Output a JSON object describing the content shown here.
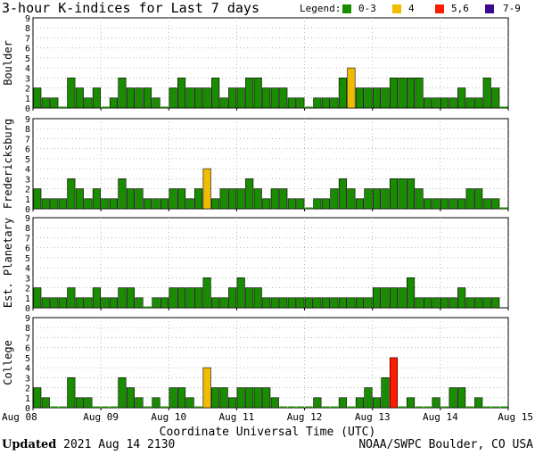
{
  "header": {
    "title": "3-hour K-indices for Last 7 days",
    "legend_label": "Legend:",
    "legend": [
      {
        "label": "0-3",
        "color": "#1a8c00"
      },
      {
        "label": "4",
        "color": "#f0bc00"
      },
      {
        "label": "5,6",
        "color": "#ff1a00"
      },
      {
        "label": "7-9",
        "color": "#3a0a8c"
      }
    ]
  },
  "footer": {
    "updated_label": "Updated",
    "updated_value": "2021 Aug 14 2130",
    "source": "NOAA/SWPC Boulder, CO USA"
  },
  "chart_data": {
    "type": "bar",
    "xlabel": "Coordinate Universal Time (UTC)",
    "x_ticks": [
      "Aug 08",
      "Aug 09",
      "Aug 10",
      "Aug 11",
      "Aug 12",
      "Aug 13",
      "Aug 14",
      "Aug 15"
    ],
    "ylim": [
      0,
      9
    ],
    "y_ticks": [
      "0",
      "1",
      "2",
      "3",
      "4",
      "5",
      "6",
      "7",
      "8",
      "9"
    ],
    "intervals_per_day": 8,
    "color_scale": [
      {
        "range": "0-3",
        "color": "#1a8c00"
      },
      {
        "range": "4",
        "color": "#f0bc00"
      },
      {
        "range": "5,6",
        "color": "#ff1a00"
      },
      {
        "range": "7-9",
        "color": "#3a0a8c"
      }
    ],
    "panels": [
      {
        "name": "Boulder",
        "values": [
          2,
          1,
          1,
          0,
          3,
          2,
          1,
          2,
          0,
          1,
          3,
          2,
          2,
          2,
          1,
          0,
          2,
          3,
          2,
          2,
          2,
          3,
          1,
          2,
          2,
          3,
          3,
          2,
          2,
          2,
          1,
          1,
          0,
          1,
          1,
          1,
          3,
          4,
          2,
          2,
          2,
          2,
          3,
          3,
          3,
          3,
          1,
          1,
          1,
          1,
          2,
          1,
          1,
          3,
          2,
          0
        ]
      },
      {
        "name": "Fredericksburg",
        "values": [
          2,
          1,
          1,
          1,
          3,
          2,
          1,
          2,
          1,
          1,
          3,
          2,
          2,
          1,
          1,
          1,
          2,
          2,
          1,
          2,
          4,
          1,
          2,
          2,
          2,
          3,
          2,
          1,
          2,
          2,
          1,
          1,
          0,
          1,
          1,
          2,
          3,
          2,
          1,
          2,
          2,
          2,
          3,
          3,
          3,
          2,
          1,
          1,
          1,
          1,
          1,
          2,
          2,
          1,
          1,
          0
        ]
      },
      {
        "name": "Est. Planetary",
        "values": [
          2,
          1,
          1,
          1,
          2,
          1,
          1,
          2,
          1,
          1,
          2,
          2,
          1,
          0,
          1,
          1,
          2,
          2,
          2,
          2,
          3,
          1,
          1,
          2,
          3,
          2,
          2,
          1,
          1,
          1,
          1,
          1,
          1,
          1,
          1,
          1,
          1,
          1,
          1,
          1,
          2,
          2,
          2,
          2,
          3,
          1,
          1,
          1,
          1,
          1,
          2,
          1,
          1,
          1,
          1
        ]
      },
      {
        "name": "College",
        "values": [
          2,
          1,
          0,
          0,
          3,
          1,
          1,
          0,
          0,
          0,
          3,
          2,
          1,
          0,
          1,
          0,
          2,
          2,
          1,
          0,
          4,
          2,
          2,
          1,
          2,
          2,
          2,
          2,
          1,
          0,
          0,
          0,
          0,
          1,
          0,
          0,
          1,
          0,
          1,
          2,
          1,
          3,
          5,
          0,
          1,
          0,
          0,
          1,
          0,
          2,
          2,
          0,
          1,
          0,
          0,
          0
        ]
      }
    ]
  }
}
